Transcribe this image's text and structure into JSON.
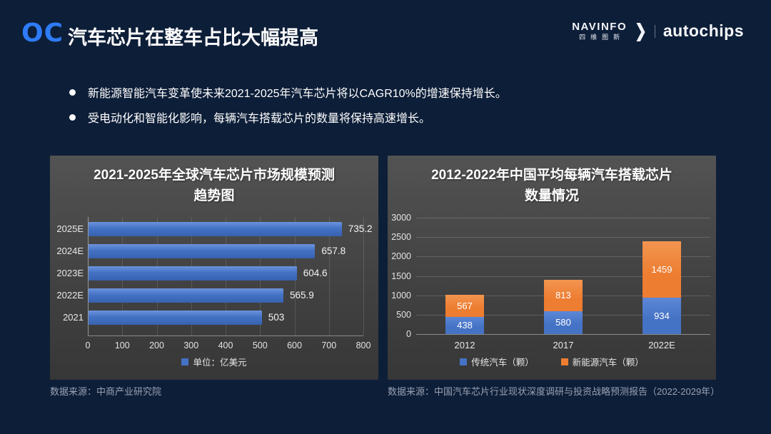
{
  "header": {
    "logo": "OC",
    "title": "汽车芯片在整车占比大幅提高",
    "brand": {
      "navinfo_en": "NAVINFO",
      "navinfo_cn": "四维图新",
      "arrow": "❯",
      "autochips": "autochips"
    }
  },
  "bullets": [
    "新能源智能汽车变革使未来2021-2025年汽车芯片将以CAGR10%的增速保持增长。",
    "受电动化和智能化影响，每辆汽车搭载芯片的数量将保持高速增长。"
  ],
  "colors": {
    "slide_background": "#0d1e38",
    "logo_blue": "#2e7bf6",
    "panel_gray_top": "#535353",
    "panel_gray_bottom": "#373737",
    "bar_blue": "#4472c4",
    "bar_orange": "#ed7d31"
  },
  "footers": {
    "left": "数据来源：中商产业研究院",
    "right": "数据来源：中国汽车芯片行业现状深度调研与投资战略预测报告（2022-2029年）"
  },
  "chart_data": [
    {
      "type": "bar",
      "orientation": "horizontal",
      "title_line1": "2021-2025年全球汽车芯片市场规模预测",
      "title_line2": "趋势图",
      "categories": [
        "2025E",
        "2024E",
        "2023E",
        "2022E",
        "2021"
      ],
      "values": [
        735.2,
        657.8,
        604.6,
        565.9,
        503
      ],
      "value_labels": [
        "735.2",
        "657.8",
        "604.6",
        "565.9",
        "503"
      ],
      "xlim": [
        0,
        800
      ],
      "x_ticks": [
        0,
        100,
        200,
        300,
        400,
        500,
        600,
        700,
        800
      ],
      "grid": true,
      "bar_color": "#4472c4",
      "bar_color_light": "#6b93dd",
      "legend": [
        {
          "label": "单位：亿美元",
          "color": "#4472c4"
        }
      ],
      "legend_position": "bottom"
    },
    {
      "type": "bar",
      "stacked": true,
      "orientation": "vertical",
      "title_line1": "2012-2022年中国平均每辆汽车搭载芯片",
      "title_line2": "数量情况",
      "categories": [
        "2012",
        "2017",
        "2022E"
      ],
      "series": [
        {
          "name": "传统汽车（颗）",
          "color": "#4472c4",
          "color_light": "#5d87d6",
          "values": [
            438,
            580,
            934
          ]
        },
        {
          "name": "新能源汽车（颗）",
          "color": "#ed7d31",
          "color_light": "#f29550",
          "values": [
            567,
            813,
            1459
          ]
        }
      ],
      "ylim": [
        0,
        3000
      ],
      "y_ticks": [
        0,
        500,
        1000,
        1500,
        2000,
        2500,
        3000
      ],
      "grid": true,
      "legend_position": "bottom"
    }
  ]
}
